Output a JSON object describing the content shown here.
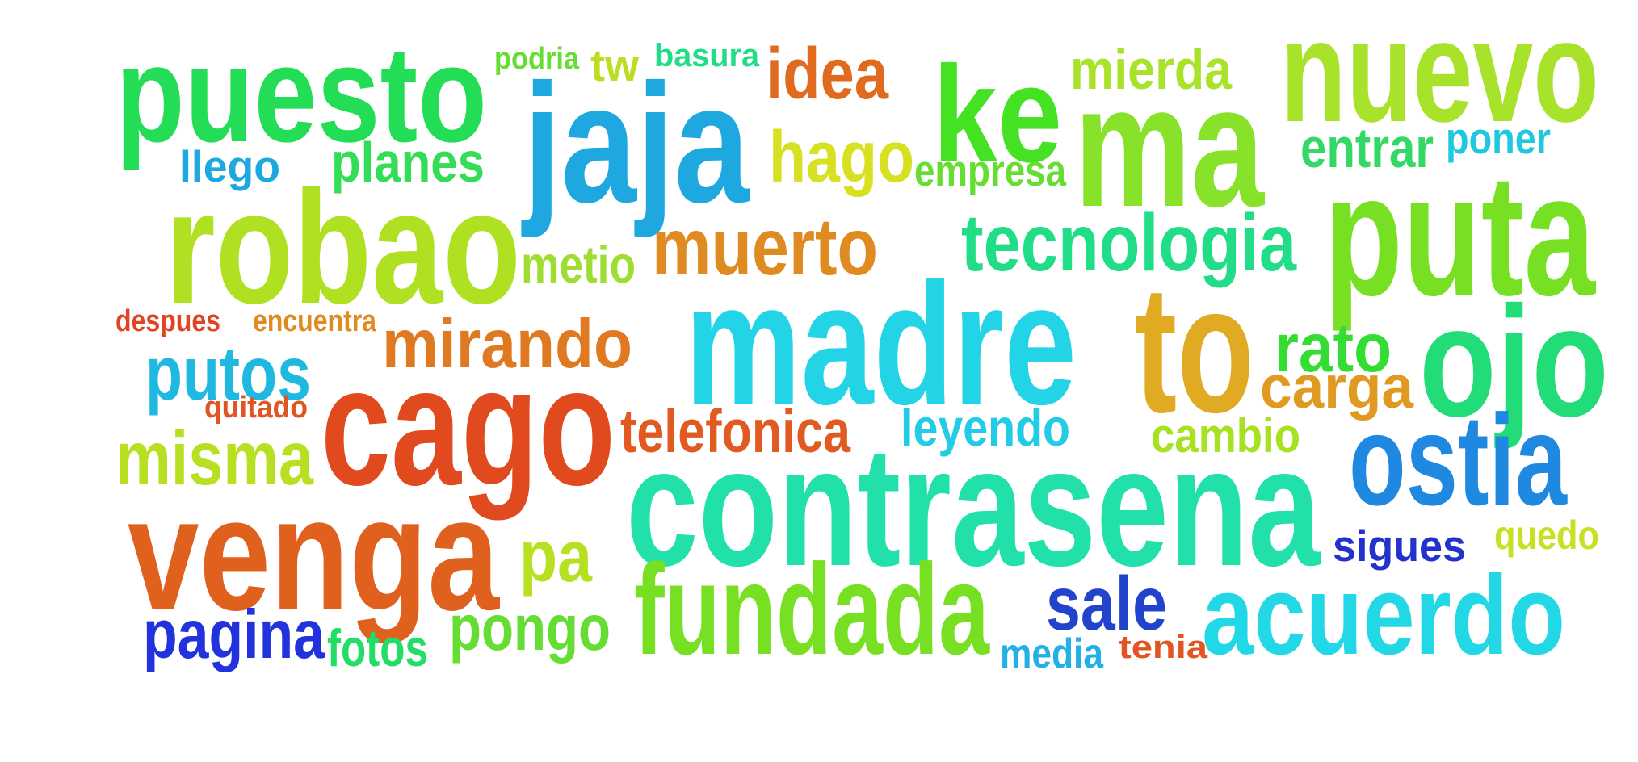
{
  "words": [
    {
      "text": "puesto",
      "color": "#22dd55"
    },
    {
      "text": "podria",
      "color": "#66dd33"
    },
    {
      "text": "tw",
      "color": "#bbdd22"
    },
    {
      "text": "basura",
      "color": "#22dd88"
    },
    {
      "text": "idea",
      "color": "#e06a1e"
    },
    {
      "text": "ke",
      "color": "#44e222"
    },
    {
      "text": "mierda",
      "color": "#a8e22a"
    },
    {
      "text": "nuevo",
      "color": "#a8e22a"
    },
    {
      "text": "jaja",
      "color": "#1fa8e0"
    },
    {
      "text": "ma",
      "color": "#88e22a"
    },
    {
      "text": "llego",
      "color": "#1fa8e0"
    },
    {
      "text": "planes",
      "color": "#33dd55"
    },
    {
      "text": "hago",
      "color": "#d8e022"
    },
    {
      "text": "empresa",
      "color": "#66dd33"
    },
    {
      "text": "entrar",
      "color": "#33d866"
    },
    {
      "text": "poner",
      "color": "#1fc8e0"
    },
    {
      "text": "robao",
      "color": "#b0e022"
    },
    {
      "text": "metio",
      "color": "#a0dd33"
    },
    {
      "text": "muerto",
      "color": "#e08a22"
    },
    {
      "text": "tecnologia",
      "color": "#22dd88"
    },
    {
      "text": "puta",
      "color": "#77e022"
    },
    {
      "text": "despues",
      "color": "#e04422"
    },
    {
      "text": "encuentra",
      "color": "#e08a22"
    },
    {
      "text": "mirando",
      "color": "#e07a22"
    },
    {
      "text": "madre",
      "color": "#22d4e6"
    },
    {
      "text": "to",
      "color": "#e0aa22"
    },
    {
      "text": "rato",
      "color": "#33dd33"
    },
    {
      "text": "ojo",
      "color": "#22dd77"
    },
    {
      "text": "putos",
      "color": "#1fb8e0"
    },
    {
      "text": "quitado",
      "color": "#e05522"
    },
    {
      "text": "carga",
      "color": "#e09a22"
    },
    {
      "text": "cago",
      "color": "#e04a1e"
    },
    {
      "text": "telefonica",
      "color": "#e05a22"
    },
    {
      "text": "leyendo",
      "color": "#22cce6"
    },
    {
      "text": "misma",
      "color": "#b8e022"
    },
    {
      "text": "cambio",
      "color": "#a8e022"
    },
    {
      "text": "ostia",
      "color": "#1f88e0"
    },
    {
      "text": "contrasena",
      "color": "#22e0aa"
    },
    {
      "text": "venga",
      "color": "#e0601e"
    },
    {
      "text": "pa",
      "color": "#b8e022"
    },
    {
      "text": "sigues",
      "color": "#2233cc"
    },
    {
      "text": "quedo",
      "color": "#c8e022"
    },
    {
      "text": "fundada",
      "color": "#77e022"
    },
    {
      "text": "sale",
      "color": "#2244cc"
    },
    {
      "text": "acuerdo",
      "color": "#22d8e6"
    },
    {
      "text": "pagina",
      "color": "#2233dd"
    },
    {
      "text": "fotos",
      "color": "#22dd66"
    },
    {
      "text": "pongo",
      "color": "#66dd33"
    },
    {
      "text": "media",
      "color": "#22b0e6"
    },
    {
      "text": "tenia",
      "color": "#e05522"
    }
  ]
}
